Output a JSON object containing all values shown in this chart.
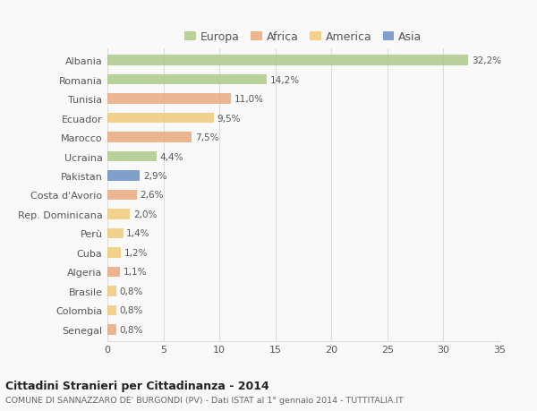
{
  "categories": [
    "Albania",
    "Romania",
    "Tunisia",
    "Ecuador",
    "Marocco",
    "Ucraina",
    "Pakistan",
    "Costa d'Avorio",
    "Rep. Dominicana",
    "Perù",
    "Cuba",
    "Algeria",
    "Brasile",
    "Colombia",
    "Senegal"
  ],
  "values": [
    32.2,
    14.2,
    11.0,
    9.5,
    7.5,
    4.4,
    2.9,
    2.6,
    2.0,
    1.4,
    1.2,
    1.1,
    0.8,
    0.8,
    0.8
  ],
  "labels": [
    "32,2%",
    "14,2%",
    "11,0%",
    "9,5%",
    "7,5%",
    "4,4%",
    "2,9%",
    "2,6%",
    "2,0%",
    "1,4%",
    "1,2%",
    "1,1%",
    "0,8%",
    "0,8%",
    "0,8%"
  ],
  "continents": [
    "Europa",
    "Europa",
    "Africa",
    "America",
    "Africa",
    "Europa",
    "Asia",
    "Africa",
    "America",
    "America",
    "America",
    "Africa",
    "America",
    "America",
    "Africa"
  ],
  "colors": {
    "Europa": "#adc98a",
    "Africa": "#e8a97e",
    "America": "#f0cc7a",
    "Asia": "#6b8fc4"
  },
  "legend_order": [
    "Europa",
    "Africa",
    "America",
    "Asia"
  ],
  "xlim": [
    0,
    35
  ],
  "xticks": [
    0,
    5,
    10,
    15,
    20,
    25,
    30,
    35
  ],
  "title": "Cittadini Stranieri per Cittadinanza - 2014",
  "subtitle": "COMUNE DI SANNAZZARO DE' BURGONDI (PV) - Dati ISTAT al 1° gennaio 2014 - TUTTITALIA.IT",
  "background_color": "#f9f9f9",
  "bar_height": 0.55,
  "grid_color": "#dddddd",
  "text_color": "#555555",
  "title_color": "#222222",
  "subtitle_color": "#666666"
}
